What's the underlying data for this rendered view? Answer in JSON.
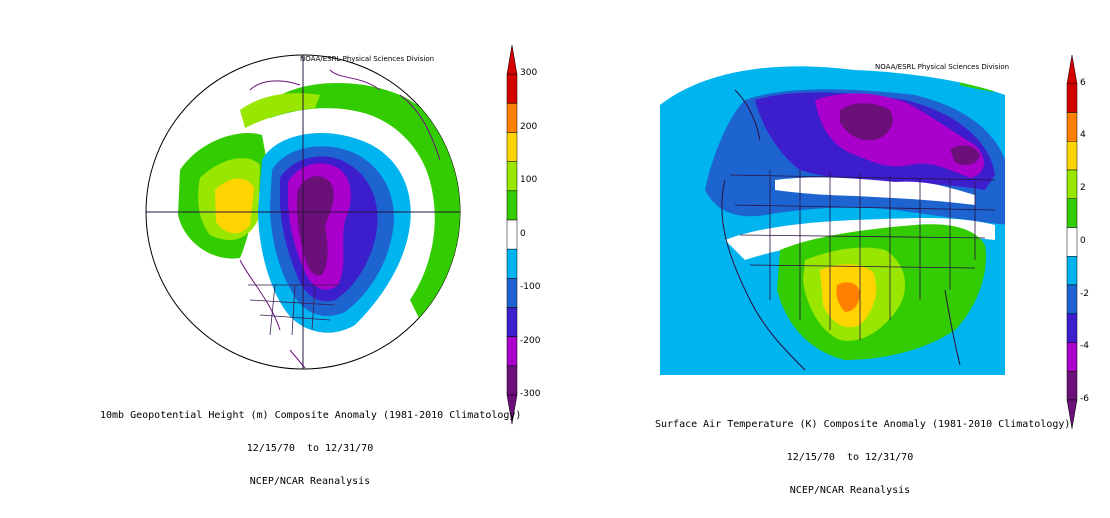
{
  "left_map": {
    "credit": "NOAA/ESRL Physical Sciences Division",
    "caption_line1": "10mb Geopotential Height (m) Composite Anomaly (1981-2010 Climatology)",
    "caption_line2": "12/15/70  to 12/31/70",
    "caption_line3": "NCEP/NCAR Reanalysis",
    "colorbar": {
      "labels": [
        "300",
        "200",
        "100",
        "0",
        "-100",
        "-200",
        "-300"
      ],
      "colors": [
        "#d40000",
        "#ff8000",
        "#ffd400",
        "#99e600",
        "#33cc00",
        "#ffffff",
        "#00b4f0",
        "#1e64d0",
        "#3c1ecc",
        "#aa00cc",
        "#6a1078"
      ]
    }
  },
  "right_map": {
    "credit": "NOAA/ESRL Physical Sciences Division",
    "caption_line1": "Surface Air Temperature (K) Composite Anomaly (1981-2010 Climatology)",
    "caption_line2": "12/15/70  to 12/31/70",
    "caption_line3": "NCEP/NCAR Reanalysis",
    "colorbar": {
      "labels": [
        "6",
        "4",
        "2",
        "0",
        "-2",
        "-4",
        "-6"
      ],
      "colors": [
        "#d40000",
        "#ff8000",
        "#ffd400",
        "#99e600",
        "#33cc00",
        "#ffffff",
        "#00b4f0",
        "#1e64d0",
        "#3c1ecc",
        "#aa00cc",
        "#6a1078"
      ]
    }
  }
}
